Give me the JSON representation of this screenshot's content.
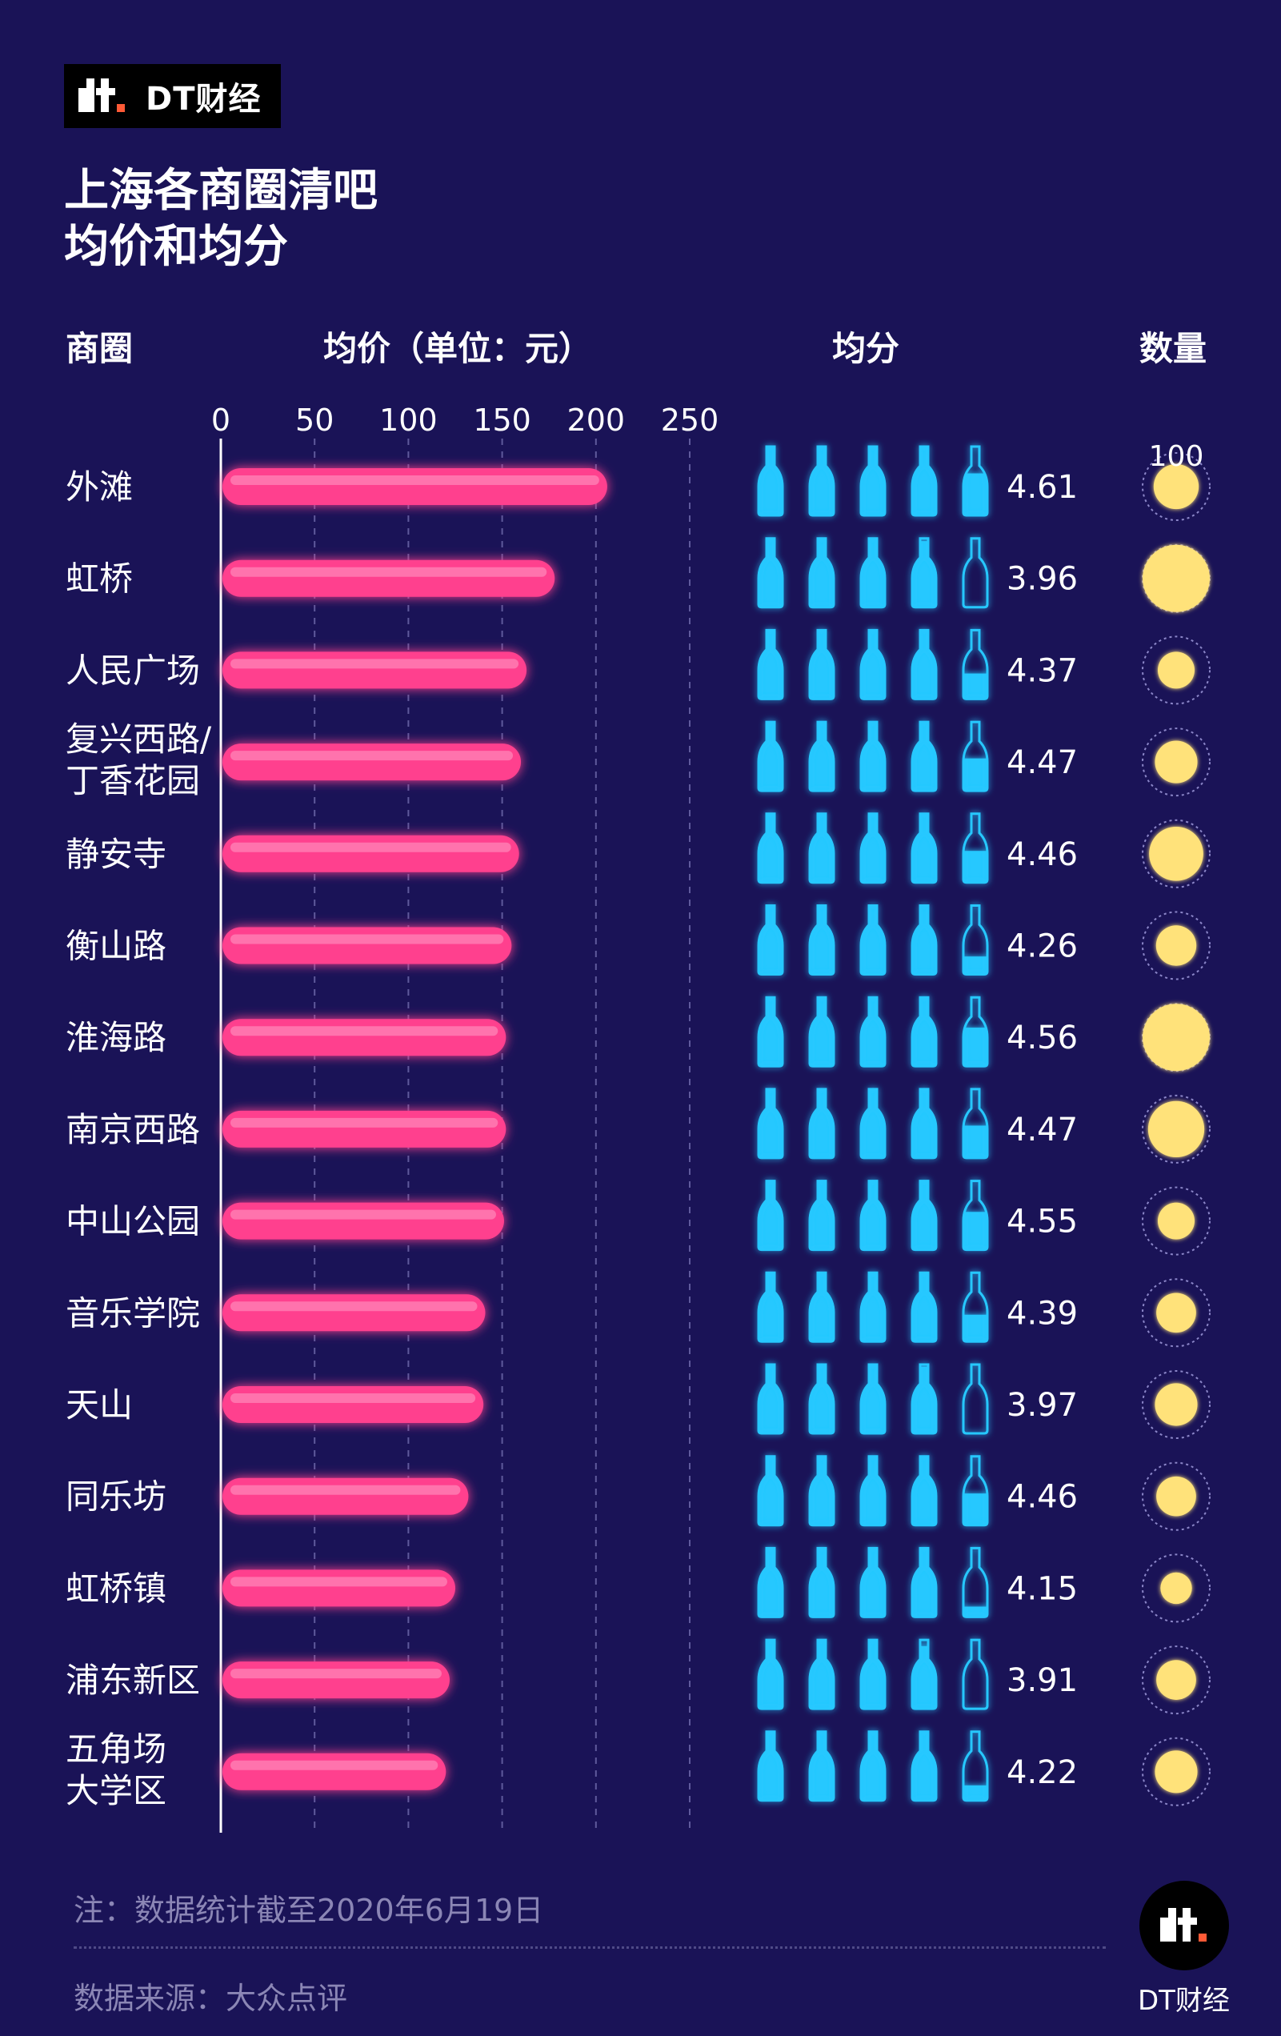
{
  "header": {
    "logo_text": "DT财经",
    "title_line1": "上海各商圈清吧",
    "title_line2": "均价和均分"
  },
  "columns": {
    "area": "商圈",
    "price": "均价（单位：元）",
    "score": "均分",
    "count": "数量"
  },
  "colors": {
    "background": "#1a1357",
    "bar": "#ff3f8e",
    "bottle": "#28c8ff",
    "circle": "#ffe27a"
  },
  "chart_data": {
    "type": "bar",
    "orientation": "horizontal",
    "categories": [
      "外滩",
      "虹桥",
      "人民广场",
      "复兴西路/\n丁香花园",
      "静安寺",
      "衡山路",
      "淮海路",
      "南京西路",
      "中山公园",
      "音乐学院",
      "天山",
      "同乐坊",
      "虹桥镇",
      "浦东新区",
      "五角场\n大学区"
    ],
    "series": [
      {
        "values": [
          206,
          178,
          163,
          160,
          159,
          155,
          152,
          152,
          151,
          141,
          140,
          132,
          125,
          122,
          120
        ]
      },
      {
        "values": [
          4.61,
          3.96,
          4.37,
          4.47,
          4.46,
          4.26,
          4.56,
          4.47,
          4.55,
          4.39,
          3.97,
          4.46,
          4.15,
          3.91,
          4.22
        ]
      },
      {
        "values": [
          45,
          100,
          30,
          40,
          65,
          36,
          100,
          70,
          30,
          35,
          40,
          35,
          22,
          35,
          40
        ]
      }
    ],
    "xlim": [
      0,
      250
    ],
    "xticks": [
      "0",
      "50",
      "100",
      "150",
      "200",
      "250"
    ],
    "score_max": 5,
    "count_reference_label": "100",
    "count_reference_value": 100
  },
  "footer": {
    "note": "注：数据统计截至2020年6月19日",
    "source": "数据来源：大众点评",
    "brand": "DT财经"
  }
}
